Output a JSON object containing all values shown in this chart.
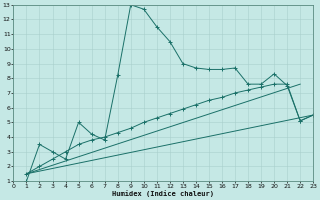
{
  "xlabel": "Humidex (Indice chaleur)",
  "xlim": [
    0,
    23
  ],
  "ylim": [
    1,
    13
  ],
  "xticks": [
    0,
    1,
    2,
    3,
    4,
    5,
    6,
    7,
    8,
    9,
    10,
    11,
    12,
    13,
    14,
    15,
    16,
    17,
    18,
    19,
    20,
    21,
    22,
    23
  ],
  "yticks": [
    1,
    2,
    3,
    4,
    5,
    6,
    7,
    8,
    9,
    10,
    11,
    12,
    13
  ],
  "bg_color": "#c5e8e5",
  "line_color": "#1a7068",
  "grid_color": "#aacfcc",
  "line1_x": [
    1,
    2,
    3,
    4,
    5,
    6,
    7,
    8,
    9,
    10,
    11,
    12,
    13,
    14,
    15,
    16,
    17,
    18,
    19,
    20,
    21,
    22,
    23
  ],
  "line1_y": [
    1.0,
    3.5,
    3.0,
    2.5,
    5.0,
    4.2,
    3.8,
    8.2,
    13.0,
    12.7,
    11.5,
    10.5,
    9.0,
    8.7,
    8.6,
    8.6,
    8.7,
    7.6,
    7.6,
    8.3,
    7.5,
    5.1,
    5.5
  ],
  "line2_x": [
    1,
    2,
    3,
    4,
    5,
    6,
    7,
    8,
    9,
    10,
    11,
    12,
    13,
    14,
    15,
    16,
    17,
    18,
    19,
    20,
    21,
    22,
    23
  ],
  "line2_y": [
    1.5,
    2.0,
    2.5,
    3.0,
    3.5,
    3.8,
    4.0,
    4.3,
    4.6,
    5.0,
    5.3,
    5.6,
    5.9,
    6.2,
    6.5,
    6.7,
    7.0,
    7.2,
    7.4,
    7.6,
    7.6,
    5.1,
    5.5
  ],
  "line3_x": [
    1,
    22
  ],
  "line3_y": [
    1.5,
    7.6
  ],
  "line4_x": [
    1,
    23
  ],
  "line4_y": [
    1.5,
    5.5
  ],
  "figsize": [
    3.2,
    2.0
  ],
  "dpi": 100
}
